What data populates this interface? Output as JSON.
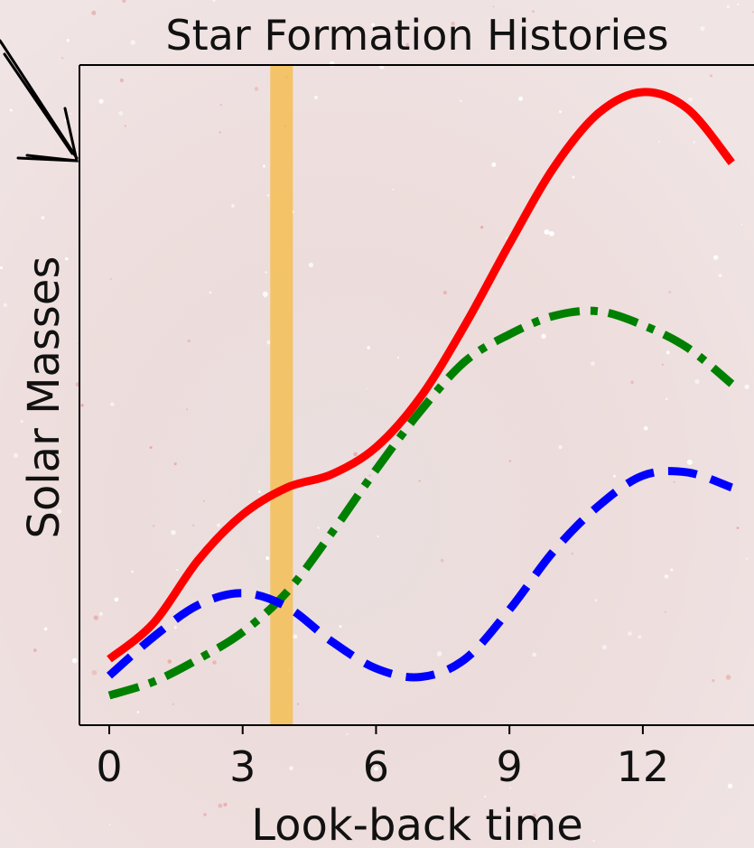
{
  "chart_data": {
    "type": "line",
    "title": "Star Formation Histories",
    "x_label": "Look-back time",
    "y_label": "Solar Masses",
    "x": [
      0,
      1,
      2,
      3,
      4,
      5,
      6,
      7,
      8,
      9,
      10,
      11,
      12,
      13,
      14
    ],
    "series": [
      {
        "color": "#ff0000",
        "style": "solid",
        "values": [
          1.0,
          1.55,
          2.5,
          3.19,
          3.6,
          3.8,
          4.21,
          4.97,
          6.06,
          7.29,
          8.45,
          9.27,
          9.59,
          9.34,
          8.52
        ]
      },
      {
        "color": "#008000",
        "style": "dashdot",
        "values": [
          0.45,
          0.66,
          1.0,
          1.41,
          2.02,
          2.91,
          3.87,
          4.76,
          5.51,
          5.92,
          6.2,
          6.27,
          6.06,
          5.72,
          5.17
        ]
      },
      {
        "color": "#0000ff",
        "style": "dashed",
        "values": [
          0.75,
          1.34,
          1.82,
          2.0,
          1.79,
          1.27,
          0.86,
          0.73,
          1.0,
          1.75,
          2.64,
          3.32,
          3.78,
          3.83,
          3.6
        ]
      }
    ],
    "highlight_span": {
      "xrange": [
        3.62,
        4.13
      ],
      "color": "#f5b942"
    },
    "xlim": [
      -0.67,
      14.5
    ],
    "ylim": [
      0,
      10
    ],
    "xticks": [
      0,
      3,
      6,
      9,
      12
    ]
  }
}
